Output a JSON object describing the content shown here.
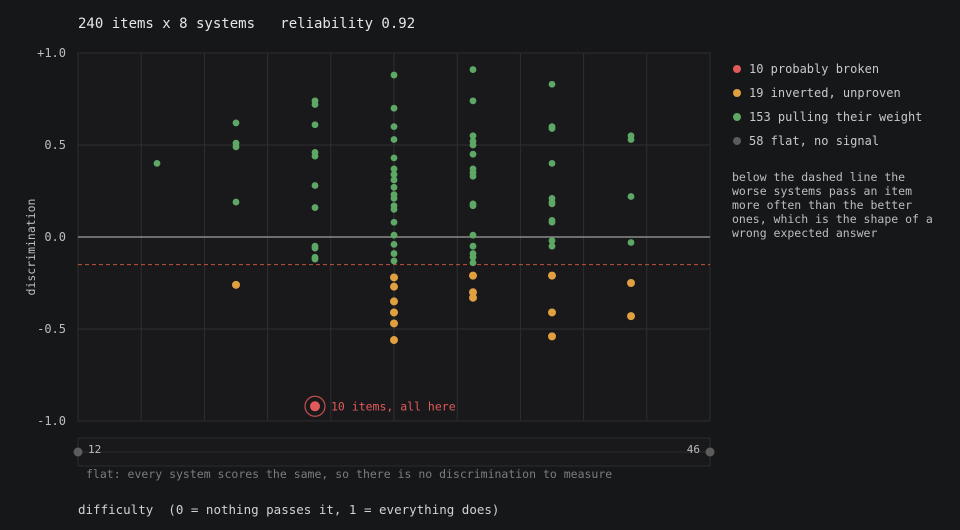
{
  "header": {
    "title": "240 items x 8 systems   reliability 0.92"
  },
  "legend": [
    {
      "label": "10 probably broken",
      "color": "#e05a5a"
    },
    {
      "label": "19 inverted, unproven",
      "color": "#e0a040"
    },
    {
      "label": "153 pulling their weight",
      "color": "#5da865"
    },
    {
      "label": "58 flat, no signal",
      "color": "#5c5c5c"
    }
  ],
  "note": "below the dashed line the worse systems pass an item more often than the better ones, which is the shape of a wrong expected answer",
  "flat_strip": {
    "left_count": "12",
    "right_count": "46",
    "caption": "flat: every system scores the same, so there is no discrimination to measure"
  },
  "x_axis": {
    "title": "difficulty  (0 = nothing passes it, 1 = everything does)"
  },
  "chart_data": {
    "type": "scatter",
    "title": "240 items x 8 systems   reliability 0.92",
    "xlabel": "difficulty  (0 = nothing passes it, 1 = everything does)",
    "ylabel": "discrimination",
    "xlim": [
      0,
      1
    ],
    "ylim": [
      -1.0,
      1.0
    ],
    "y_ticks": [
      "+1.0",
      "0.5",
      "0.0",
      "-0.5",
      "-1.0"
    ],
    "y_tick_values": [
      1.0,
      0.5,
      0.0,
      -0.5,
      -1.0
    ],
    "x_grid": [
      0.1,
      0.2,
      0.3,
      0.4,
      0.5,
      0.6,
      0.7,
      0.8,
      0.9
    ],
    "grid": true,
    "reference_line": {
      "y": -0.15,
      "style": "dashed",
      "color": "#c0543f"
    },
    "colors": {
      "probably_broken": "#e05a5a",
      "inverted": "#e0a040",
      "pulling": "#5da865",
      "flat": "#5c5c5c"
    },
    "series": [
      {
        "name": "pulling their weight",
        "key": "pulling",
        "points": [
          [
            0.125,
            0.4
          ],
          [
            0.25,
            0.62
          ],
          [
            0.25,
            0.51
          ],
          [
            0.25,
            0.49
          ],
          [
            0.25,
            0.19
          ],
          [
            0.375,
            0.74
          ],
          [
            0.375,
            0.72
          ],
          [
            0.375,
            0.61
          ],
          [
            0.375,
            0.46
          ],
          [
            0.375,
            0.44
          ],
          [
            0.375,
            0.28
          ],
          [
            0.375,
            0.16
          ],
          [
            0.375,
            -0.05
          ],
          [
            0.375,
            -0.06
          ],
          [
            0.375,
            -0.11
          ],
          [
            0.375,
            -0.12
          ],
          [
            0.5,
            0.88
          ],
          [
            0.5,
            0.7
          ],
          [
            0.5,
            0.6
          ],
          [
            0.5,
            0.53
          ],
          [
            0.5,
            0.43
          ],
          [
            0.5,
            0.37
          ],
          [
            0.5,
            0.34
          ],
          [
            0.5,
            0.31
          ],
          [
            0.5,
            0.27
          ],
          [
            0.5,
            0.23
          ],
          [
            0.5,
            0.21
          ],
          [
            0.5,
            0.17
          ],
          [
            0.5,
            0.15
          ],
          [
            0.5,
            0.08
          ],
          [
            0.5,
            0.01
          ],
          [
            0.5,
            -0.04
          ],
          [
            0.5,
            -0.09
          ],
          [
            0.5,
            -0.13
          ],
          [
            0.625,
            0.91
          ],
          [
            0.625,
            0.74
          ],
          [
            0.625,
            0.55
          ],
          [
            0.625,
            0.52
          ],
          [
            0.625,
            0.5
          ],
          [
            0.625,
            0.45
          ],
          [
            0.625,
            0.37
          ],
          [
            0.625,
            0.35
          ],
          [
            0.625,
            0.33
          ],
          [
            0.625,
            0.18
          ],
          [
            0.625,
            0.17
          ],
          [
            0.625,
            0.01
          ],
          [
            0.625,
            -0.05
          ],
          [
            0.625,
            -0.09
          ],
          [
            0.625,
            -0.11
          ],
          [
            0.625,
            -0.14
          ],
          [
            0.75,
            0.83
          ],
          [
            0.75,
            0.6
          ],
          [
            0.75,
            0.59
          ],
          [
            0.75,
            0.4
          ],
          [
            0.75,
            0.21
          ],
          [
            0.75,
            0.19
          ],
          [
            0.75,
            0.18
          ],
          [
            0.75,
            0.09
          ],
          [
            0.75,
            0.08
          ],
          [
            0.75,
            -0.02
          ],
          [
            0.75,
            -0.05
          ],
          [
            0.875,
            0.55
          ],
          [
            0.875,
            0.53
          ],
          [
            0.875,
            0.22
          ],
          [
            0.875,
            -0.03
          ]
        ]
      },
      {
        "name": "inverted, unproven",
        "key": "inverted",
        "points": [
          [
            0.25,
            -0.26
          ],
          [
            0.5,
            -0.22
          ],
          [
            0.5,
            -0.27
          ],
          [
            0.5,
            -0.35
          ],
          [
            0.5,
            -0.41
          ],
          [
            0.5,
            -0.47
          ],
          [
            0.5,
            -0.56
          ],
          [
            0.625,
            -0.21
          ],
          [
            0.625,
            -0.3
          ],
          [
            0.625,
            -0.33
          ],
          [
            0.75,
            -0.21
          ],
          [
            0.75,
            -0.41
          ],
          [
            0.75,
            -0.54
          ],
          [
            0.875,
            -0.25
          ],
          [
            0.875,
            -0.43
          ]
        ]
      },
      {
        "name": "probably broken",
        "key": "probably_broken",
        "points": [
          [
            0.375,
            -0.92
          ]
        ],
        "annotation": "10 items, all here"
      }
    ]
  }
}
